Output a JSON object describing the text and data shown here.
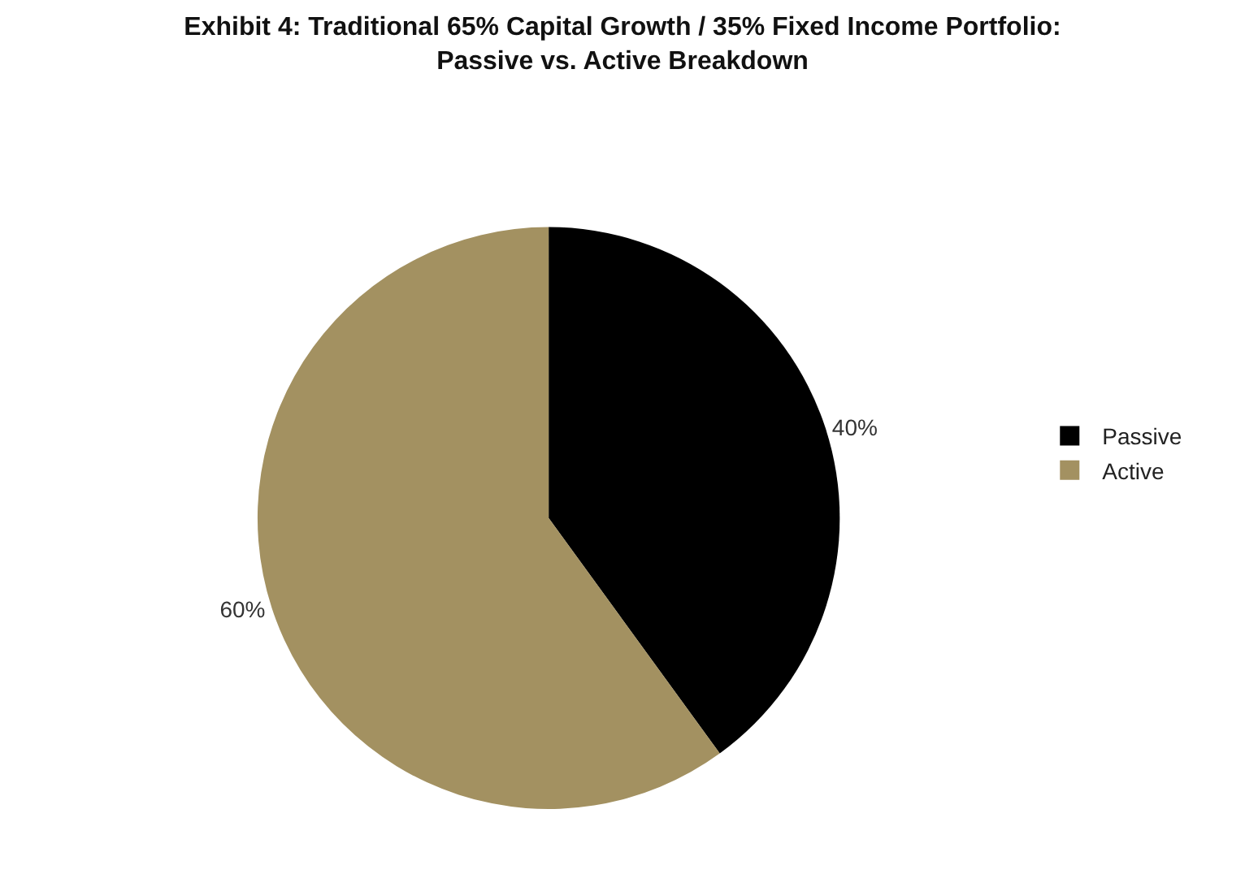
{
  "chart_data": {
    "type": "pie",
    "title": "Exhibit 4: Traditional 65% Capital Growth / 35% Fixed Income Portfolio: Passive vs. Active Breakdown",
    "categories": [
      "Passive",
      "Active"
    ],
    "values": [
      40,
      60
    ],
    "colors": [
      "#000000",
      "#a39161"
    ],
    "value_labels": [
      "40%",
      "60%"
    ],
    "legend": "right"
  }
}
